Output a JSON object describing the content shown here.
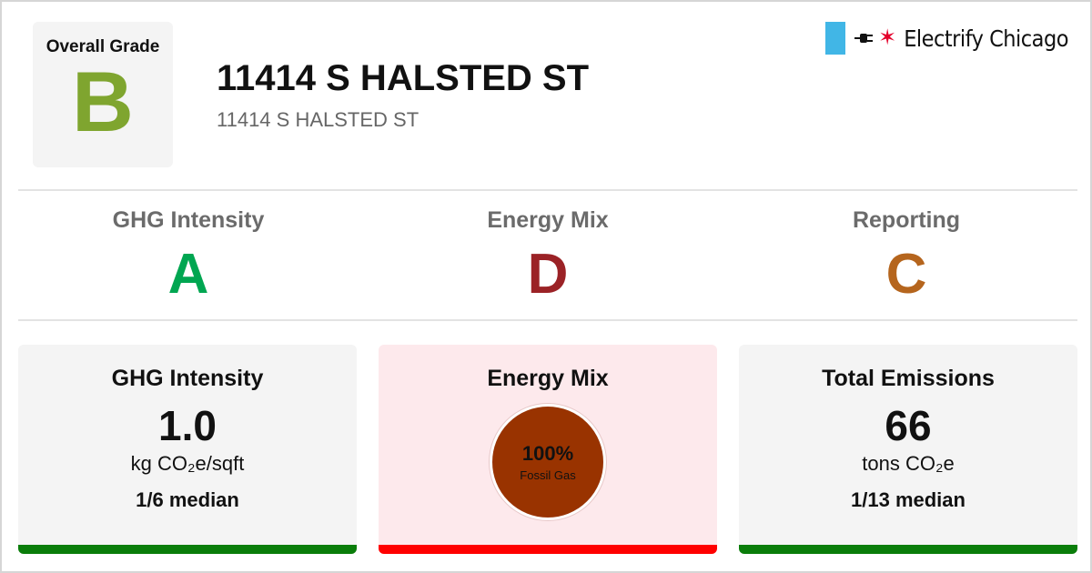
{
  "header": {
    "overall_grade_label": "Overall Grade",
    "overall_grade": "B",
    "address_title": "11414 S HALSTED ST",
    "address_sub": "11414 S HALSTED ST"
  },
  "brand": {
    "name": "Electrify Chicago",
    "logo_icon": "plug-icon",
    "star_icon": "chicago-star-icon"
  },
  "sub_grades": [
    {
      "title": "GHG Intensity",
      "grade": "A",
      "color": "#00a651"
    },
    {
      "title": "Energy Mix",
      "grade": "D",
      "color": "#9b2226"
    },
    {
      "title": "Reporting",
      "grade": "C",
      "color": "#b5651d"
    }
  ],
  "cards": {
    "ghg_intensity": {
      "title": "GHG Intensity",
      "value": "1.0",
      "unit": "kg CO₂e/sqft",
      "median": "1/6 median",
      "bar_color": "#0a7d0a"
    },
    "energy_mix": {
      "title": "Energy Mix",
      "percent_label": "100%",
      "fuel": "Fossil Gas",
      "fossil_gas_share": 1.0,
      "pie_color": "#993300",
      "bar_color": "#ff0000",
      "background": "#fde9ec"
    },
    "total_emissions": {
      "title": "Total Emissions",
      "value": "66",
      "unit": "tons CO₂e",
      "median": "1/13 median",
      "bar_color": "#0a7d0a"
    }
  }
}
